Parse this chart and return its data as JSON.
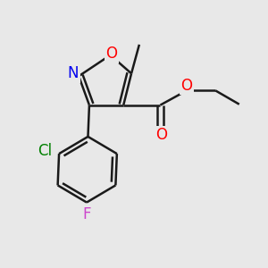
{
  "bg_color": "#e8e8e8",
  "bond_color": "#1a1a1a",
  "bond_width": 1.8,
  "dbo": 0.012,
  "figsize": [
    3.0,
    3.0
  ],
  "dpi": 100,
  "colors": {
    "O": "#ff0000",
    "N": "#0000ee",
    "Cl": "#008000",
    "F": "#cc44cc",
    "C": "#1a1a1a"
  }
}
